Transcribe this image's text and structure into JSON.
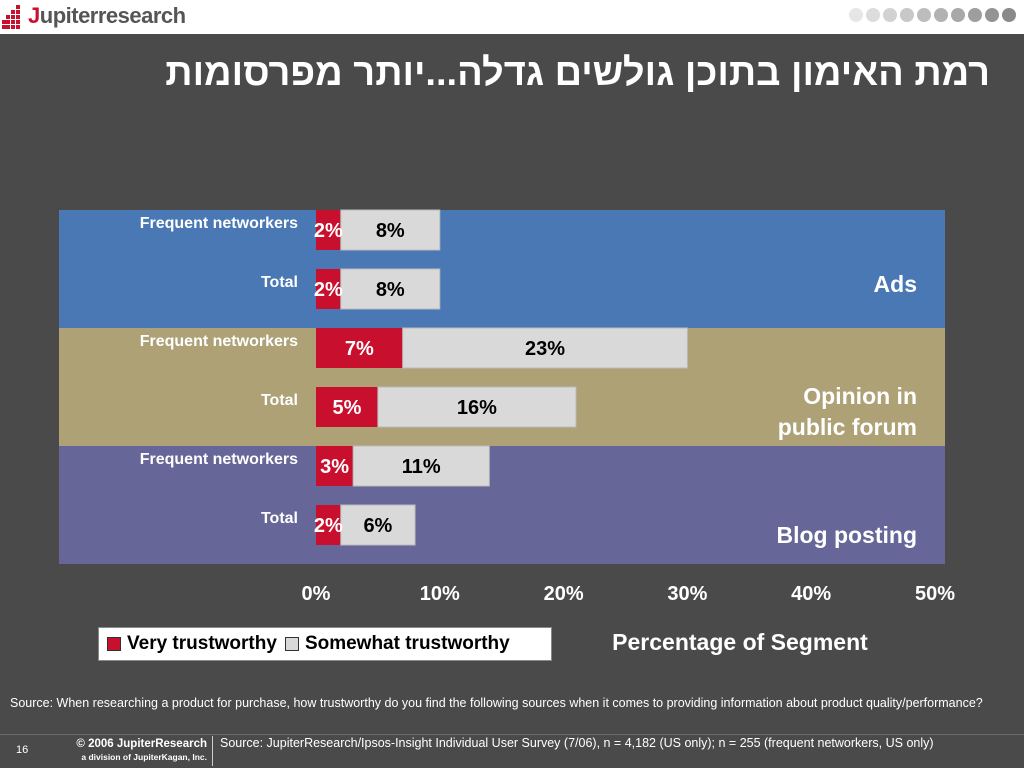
{
  "header": {
    "logo_text": "Jupiterresearch",
    "title": "רמת האימון בתוכן גולשים גדלה...יותר מפרסומות"
  },
  "colors": {
    "background": "#4a4a4a",
    "very": "#c8102e",
    "somewhat": "#d9d9d9",
    "ads": "#4a78b4",
    "opinion": "#ada175",
    "blog": "#666699"
  },
  "chart_data": {
    "type": "bar",
    "orientation": "horizontal",
    "stacked": true,
    "xlabel": "Percentage of Segment",
    "xlim": [
      0,
      50
    ],
    "xticks": [
      "0%",
      "10%",
      "20%",
      "30%",
      "40%",
      "50%"
    ],
    "legend": [
      "Very trustworthy",
      "Somewhat trustworthy"
    ],
    "groups": [
      {
        "name": "Ads",
        "color": "#4a78b4",
        "rows": [
          {
            "label": "Frequent networkers",
            "very": 2,
            "somewhat": 8
          },
          {
            "label": "Total",
            "very": 2,
            "somewhat": 8
          }
        ]
      },
      {
        "name": "Opinion in public forum",
        "name_lines": [
          "Opinion in",
          "public forum"
        ],
        "color": "#ada175",
        "rows": [
          {
            "label": "Frequent networkers",
            "very": 7,
            "somewhat": 23
          },
          {
            "label": "Total",
            "very": 5,
            "somewhat": 16
          }
        ]
      },
      {
        "name": "Blog posting",
        "color": "#666699",
        "rows": [
          {
            "label": "Frequent networkers",
            "very": 3,
            "somewhat": 11
          },
          {
            "label": "Total",
            "very": 2,
            "somewhat": 6
          }
        ]
      }
    ]
  },
  "legend": {
    "very_label": "Very trustworthy",
    "somewhat_label": "Somewhat trustworthy"
  },
  "footer": {
    "question": "Source: When researching a product for purchase, how trustworthy do you find the following sources when it comes to providing information about product quality/performance?",
    "page_number": "16",
    "copyright": "© 2006 JupiterResearch",
    "division": "a division of JupiterKagan, Inc.",
    "source": "Source: JupiterResearch/Ipsos-Insight Individual User Survey (7/06), n = 4,182 (US only); n = 255 (frequent networkers, US only)"
  }
}
